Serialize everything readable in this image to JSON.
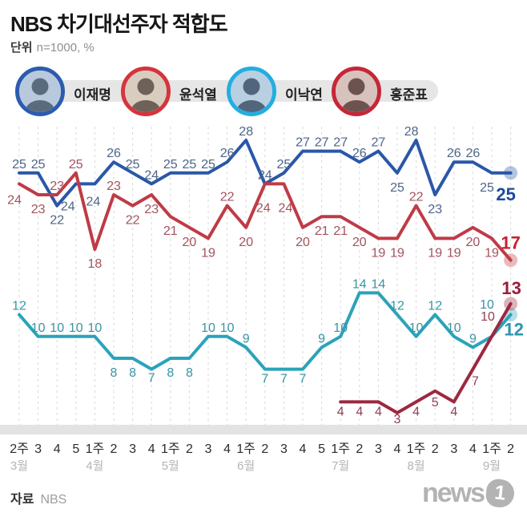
{
  "header": {
    "title": "NBS 차기대선주자 적합도",
    "unit_label": "단위",
    "unit_value": "n=1000, %"
  },
  "legend": [
    {
      "name": "이재명",
      "ring_color": "#2b5cb0",
      "photo_bg": "#b9c9dd",
      "photo_fg": "#5b6b7e"
    },
    {
      "name": "윤석열",
      "ring_color": "#d6343c",
      "photo_bg": "#d9cdc0",
      "photo_fg": "#6e6258"
    },
    {
      "name": "이낙연",
      "ring_color": "#23aee0",
      "photo_bg": "#b9cfe2",
      "photo_fg": "#51657d"
    },
    {
      "name": "홍준표",
      "ring_color": "#c52737",
      "photo_bg": "#d8c2bd",
      "photo_fg": "#6d5350"
    }
  ],
  "footer": {
    "source_label": "자료",
    "source_value": "NBS",
    "watermark_word": "news",
    "watermark_num": "1"
  },
  "chart_data": {
    "type": "line",
    "title": "NBS 차기대선주자 적합도",
    "unit": "n=1000, %",
    "grid": true,
    "ylim": [
      0,
      30
    ],
    "x_week_labels": [
      "2주",
      "3",
      "4",
      "5",
      "1주",
      "2",
      "3",
      "4",
      "1주",
      "2",
      "3",
      "4",
      "1주",
      "2",
      "3",
      "4",
      "5",
      "1주",
      "2",
      "3",
      "4",
      "1주",
      "2",
      "3",
      "4",
      "1주",
      "2"
    ],
    "months": [
      {
        "label": "3월",
        "index": 0
      },
      {
        "label": "4월",
        "index": 4
      },
      {
        "label": "5월",
        "index": 8
      },
      {
        "label": "6월",
        "index": 12
      },
      {
        "label": "7월",
        "index": 17
      },
      {
        "label": "8월",
        "index": 21
      },
      {
        "label": "9월",
        "index": 25
      }
    ],
    "series": [
      {
        "name": "이재명",
        "key": "lee-jae-myung",
        "color": "#2a57a8",
        "label_color": "#4e6587",
        "final_color": "#1c4b9c",
        "start_index": 0,
        "values": [
          25,
          25,
          22,
          24,
          24,
          26,
          25,
          24,
          25,
          25,
          25,
          26,
          28,
          24,
          25,
          27,
          27,
          27,
          26,
          27,
          25,
          28,
          23,
          26,
          26,
          25,
          25
        ],
        "label_pos": [
          "a",
          "a",
          "b",
          "b",
          "b",
          "a",
          "a",
          "a",
          "a",
          "a",
          "a",
          "a",
          "a",
          "a",
          "a",
          "a",
          "a",
          "a",
          "a",
          "a",
          "b",
          "a",
          "b",
          "a",
          "a",
          "b",
          "f"
        ],
        "label_offsets": {
          "3": [
            -10,
            10
          ],
          "4": [
            -2,
            4
          ],
          "21": [
            -6,
            0
          ],
          "25": [
            -6,
            0
          ]
        },
        "final_offset": [
          -6,
          34
        ]
      },
      {
        "name": "윤석열",
        "key": "yoon-suk-yeol",
        "color": "#bf3b46",
        "label_color": "#a4525c",
        "final_color": "#c5202f",
        "start_index": 0,
        "values": [
          24,
          23,
          23,
          25,
          18,
          23,
          22,
          23,
          21,
          20,
          19,
          22,
          20,
          24,
          24,
          20,
          21,
          21,
          20,
          19,
          19,
          22,
          19,
          19,
          20,
          19,
          17
        ],
        "label_pos": [
          "b",
          "b",
          "a",
          "a",
          "b",
          "a",
          "b",
          "b",
          "b",
          "b",
          "b",
          "a",
          "b",
          "b",
          "b",
          "b",
          "b",
          "b",
          "b",
          "b",
          "b",
          "a",
          "b",
          "b",
          "b",
          "b",
          "f"
        ],
        "label_offsets": {
          "0": [
            -6,
            2
          ],
          "13": [
            -2,
            12
          ],
          "14": [
            2,
            12
          ]
        },
        "final_offset": [
          0,
          -14
        ]
      },
      {
        "name": "이낙연",
        "key": "lee-nak-yeon",
        "color": "#2ba3ba",
        "label_color": "#3a93a6",
        "final_color": "#2b95ae",
        "start_index": 0,
        "values": [
          12,
          10,
          10,
          10,
          10,
          8,
          8,
          7,
          8,
          8,
          10,
          10,
          9,
          7,
          7,
          7,
          9,
          10,
          14,
          14,
          12,
          10,
          12,
          10,
          9,
          10,
          12
        ],
        "label_pos": [
          "a",
          "a",
          "a",
          "a",
          "a",
          "b",
          "b",
          "b",
          "b",
          "b",
          "a",
          "a",
          "a",
          "b",
          "b",
          "b",
          "a",
          "a",
          "a",
          "a",
          "a",
          "a",
          "a",
          "a",
          "a",
          "a",
          "f"
        ],
        "label_offsets": {
          "7": [
            0,
            -7
          ],
          "13": [
            0,
            -6
          ],
          "14": [
            0,
            -6
          ],
          "15": [
            0,
            -6
          ],
          "25": [
            -6,
            -29
          ]
        },
        "final_offset": [
          4,
          26
        ]
      },
      {
        "name": "홍준표",
        "key": "hong-jun-pyo",
        "color": "#9c2840",
        "label_color": "#924055",
        "final_color": "#9a1c38",
        "start_index": 17,
        "values": [
          4,
          4,
          4,
          3,
          4,
          5,
          4,
          7,
          10,
          13
        ],
        "label_pos": [
          "b",
          "b",
          "b",
          "b",
          "b",
          "b",
          "b",
          "b",
          "a",
          "f"
        ],
        "label_offsets": {
          "0": [
            0,
            -6
          ],
          "1": [
            0,
            -6
          ],
          "2": [
            0,
            -6
          ],
          "3": [
            0,
            -10
          ],
          "4": [
            0,
            -6
          ],
          "5": [
            0,
            -4
          ],
          "6": [
            0,
            -6
          ],
          "7": [
            3,
            -3
          ],
          "8": [
            -5,
            -14
          ]
        },
        "final_offset": [
          1,
          -12
        ]
      }
    ]
  }
}
